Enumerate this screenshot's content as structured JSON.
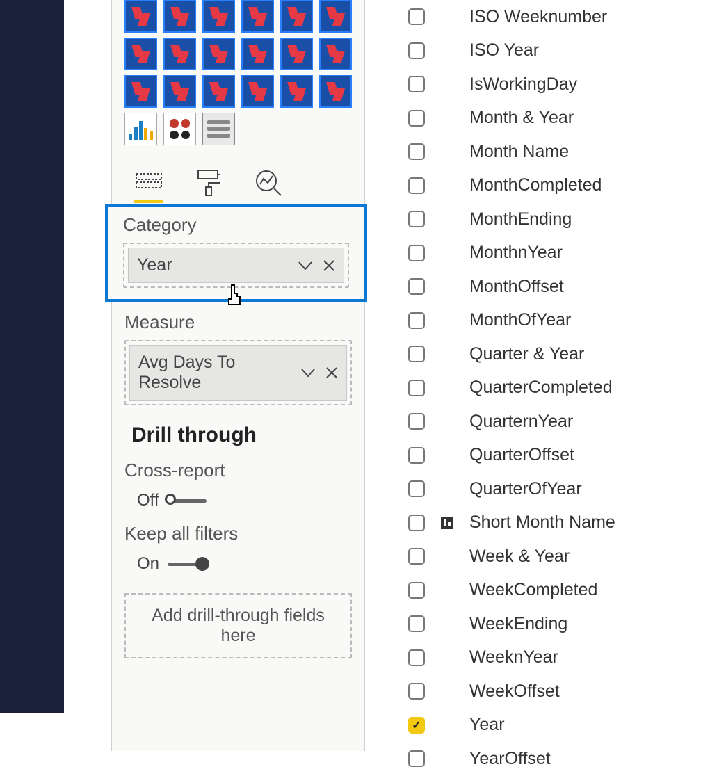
{
  "colors": {
    "highlight_border": "#0a78d4",
    "accent_yellow": "#f2c811",
    "nav_bg": "#1a1f3a",
    "tile_bg": "#1a4fa8",
    "tile_border": "#2a7fff",
    "tile_glyph": "#e63946"
  },
  "viz_palette": {
    "custom_tile_rows": 3,
    "custom_tile_cols_row12": 6,
    "custom_tile_cols_row3": 6
  },
  "wells": {
    "category": {
      "label": "Category",
      "field": "Year"
    },
    "measure": {
      "label": "Measure",
      "field": "Avg Days To Resolve"
    }
  },
  "drill": {
    "title": "Drill through",
    "cross_report": {
      "label": "Cross-report",
      "state_label": "Off",
      "on": false
    },
    "keep_filters": {
      "label": "Keep all filters",
      "state_label": "On",
      "on": true
    },
    "drop_hint": "Add drill-through fields here"
  },
  "fields": [
    {
      "name": "ISO Weeknumber",
      "checked": false,
      "icon": null
    },
    {
      "name": "ISO Year",
      "checked": false,
      "icon": null
    },
    {
      "name": "IsWorkingDay",
      "checked": false,
      "icon": null
    },
    {
      "name": "Month & Year",
      "checked": false,
      "icon": null
    },
    {
      "name": "Month Name",
      "checked": false,
      "icon": null
    },
    {
      "name": "MonthCompleted",
      "checked": false,
      "icon": null
    },
    {
      "name": "MonthEnding",
      "checked": false,
      "icon": null
    },
    {
      "name": "MonthnYear",
      "checked": false,
      "icon": null
    },
    {
      "name": "MonthOffset",
      "checked": false,
      "icon": null
    },
    {
      "name": "MonthOfYear",
      "checked": false,
      "icon": null
    },
    {
      "name": "Quarter & Year",
      "checked": false,
      "icon": null
    },
    {
      "name": "QuarterCompleted",
      "checked": false,
      "icon": null
    },
    {
      "name": "QuarternYear",
      "checked": false,
      "icon": null
    },
    {
      "name": "QuarterOffset",
      "checked": false,
      "icon": null
    },
    {
      "name": "QuarterOfYear",
      "checked": false,
      "icon": null
    },
    {
      "name": "Short Month Name",
      "checked": false,
      "icon": "hierarchy"
    },
    {
      "name": "Week & Year",
      "checked": false,
      "icon": null
    },
    {
      "name": "WeekCompleted",
      "checked": false,
      "icon": null
    },
    {
      "name": "WeekEnding",
      "checked": false,
      "icon": null
    },
    {
      "name": "WeeknYear",
      "checked": false,
      "icon": null
    },
    {
      "name": "WeekOffset",
      "checked": false,
      "icon": null
    },
    {
      "name": "Year",
      "checked": true,
      "icon": null
    },
    {
      "name": "YearOffset",
      "checked": false,
      "icon": null
    }
  ]
}
